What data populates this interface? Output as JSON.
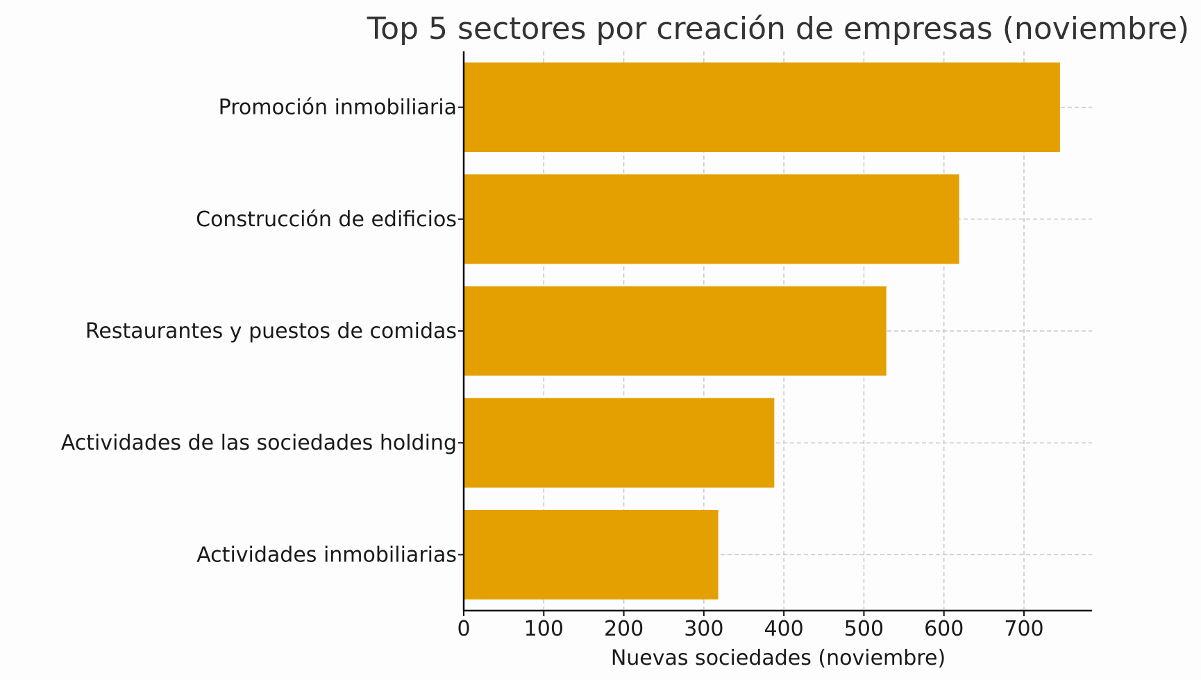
{
  "chart_data": {
    "type": "bar",
    "orientation": "horizontal",
    "title": "Top 5 sectores por creación de empresas (noviembre)",
    "xlabel": "Nuevas sociedades (noviembre)",
    "ylabel": "",
    "categories": [
      "Promoción inmobiliaria",
      "Construcción de edificios",
      "Restaurantes y puestos de comidas",
      "Actividades de las sociedades holding",
      "Actividades inmobiliarias"
    ],
    "values": [
      745,
      619,
      528,
      388,
      318
    ],
    "xlim": [
      0,
      785
    ],
    "xticks": [
      0,
      100,
      200,
      300,
      400,
      500,
      600,
      700
    ],
    "grid": true,
    "bar_color": "#E3A000"
  }
}
